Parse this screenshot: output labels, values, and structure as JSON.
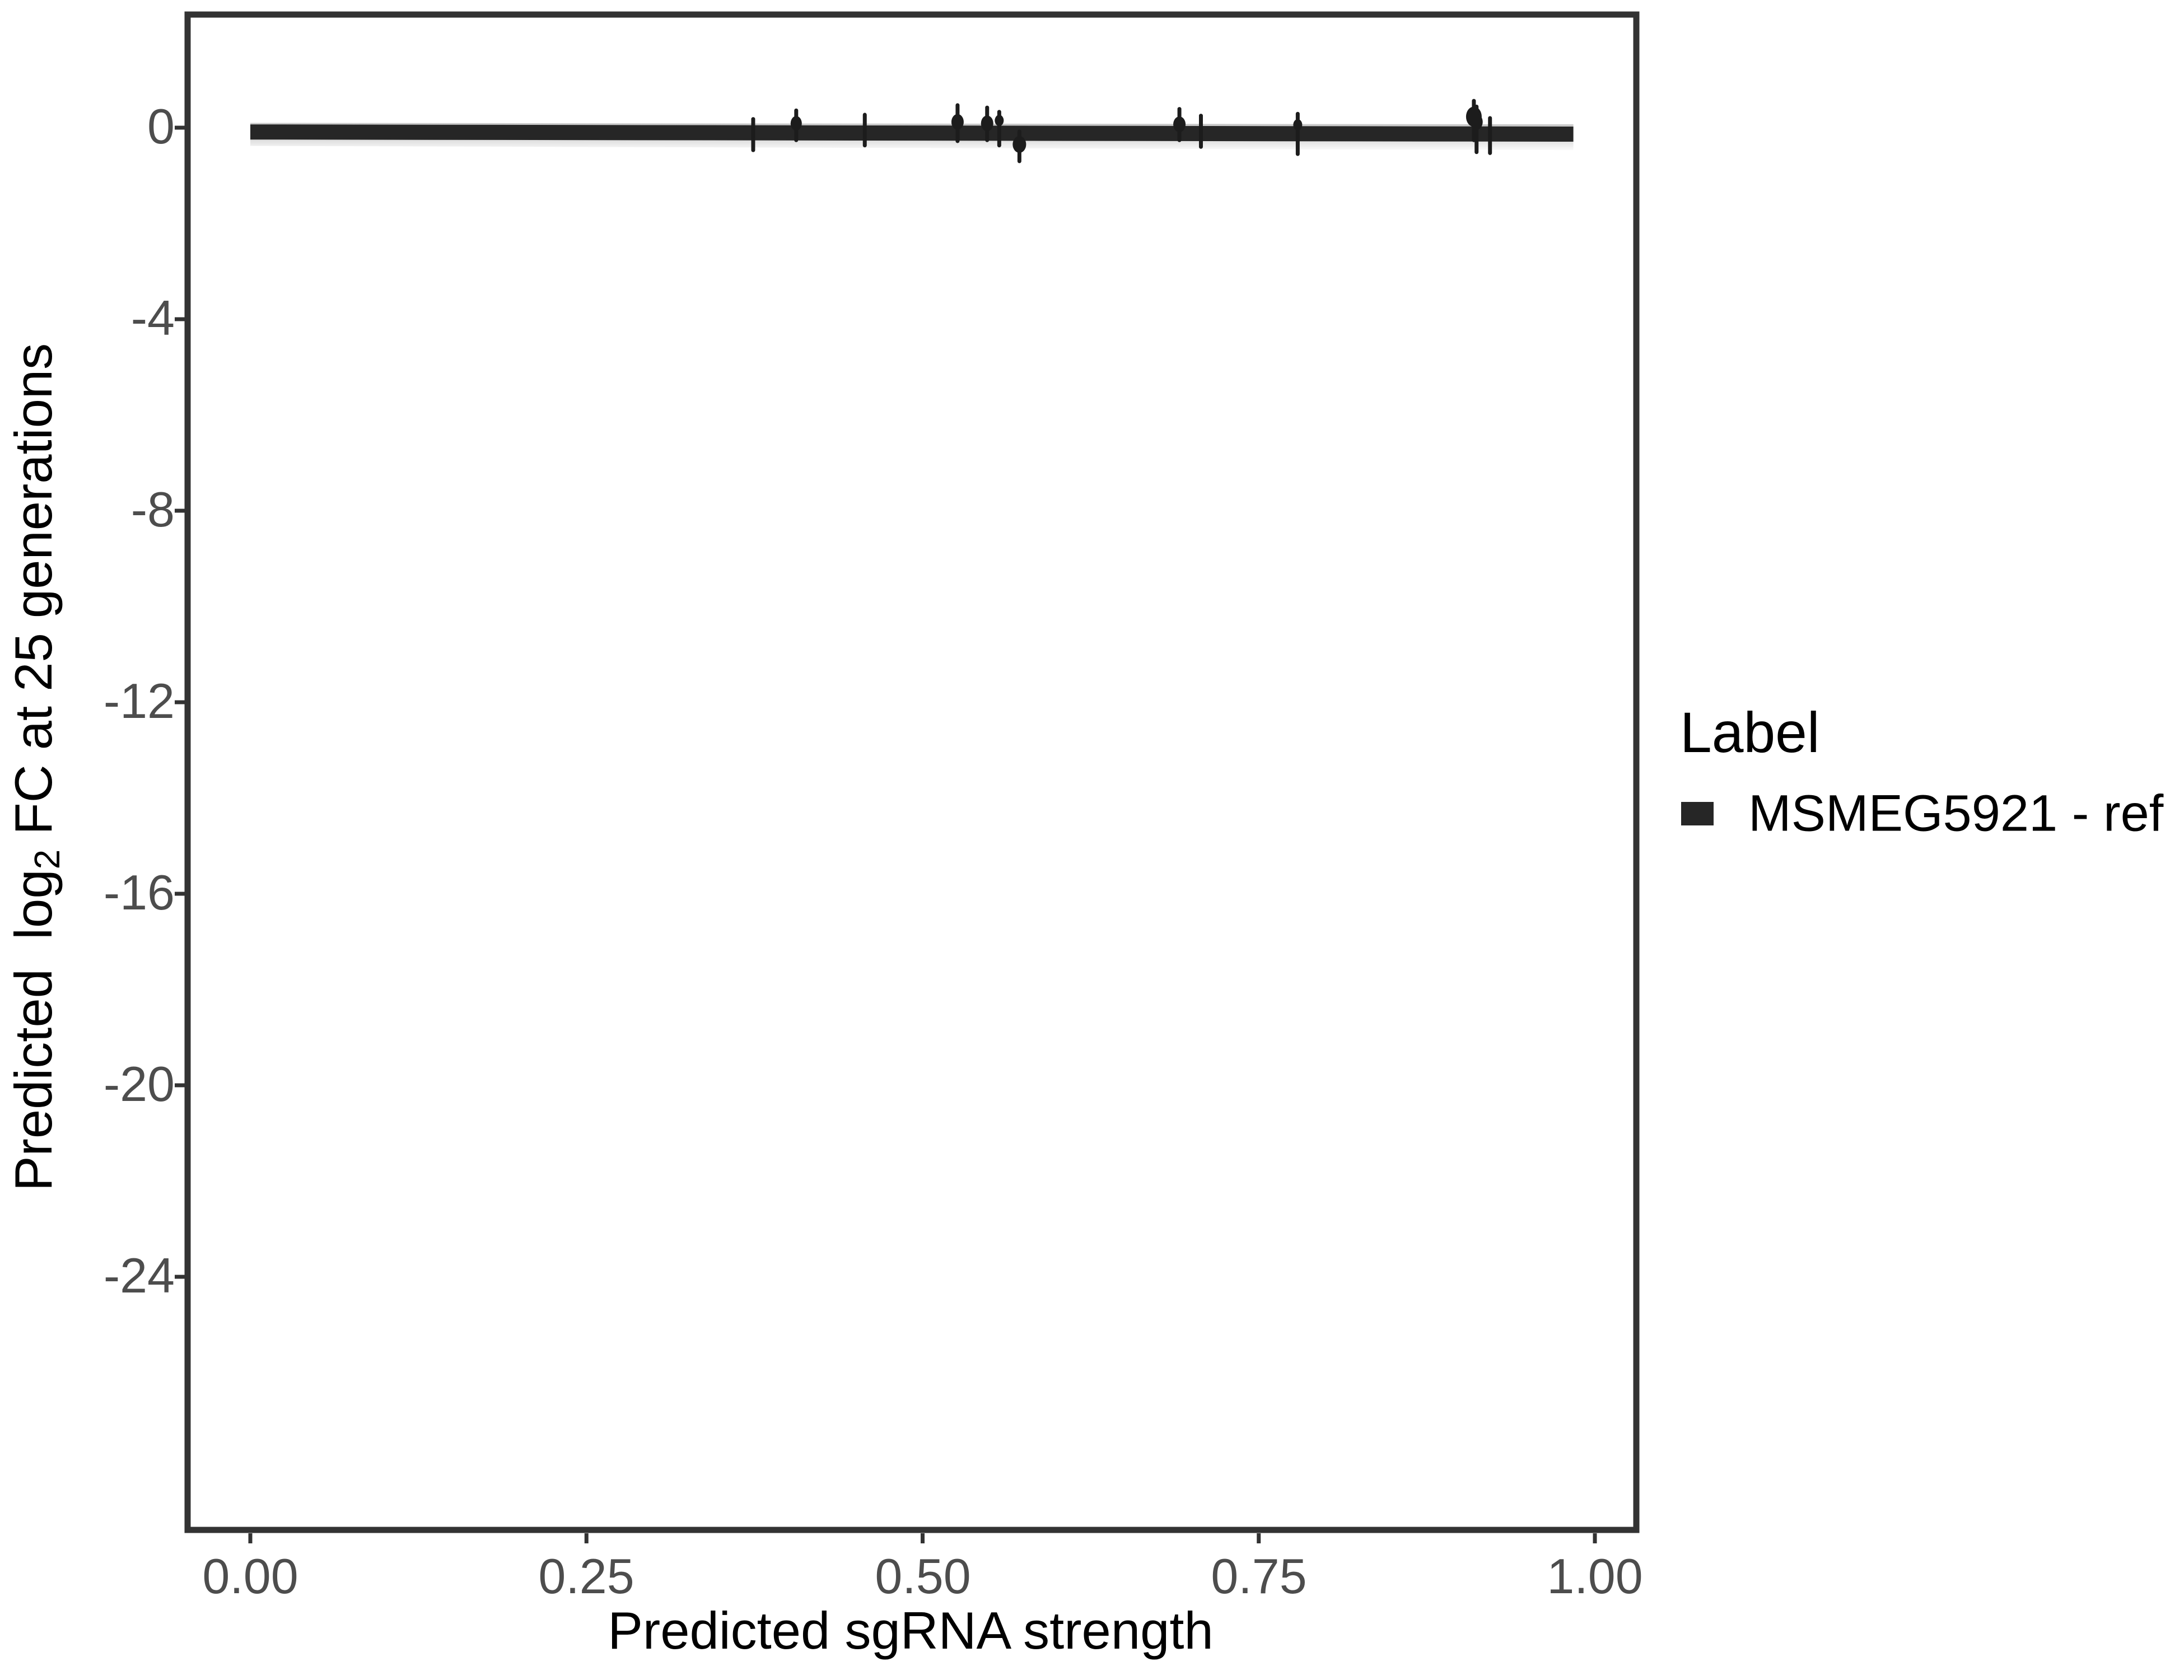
{
  "chart_data": {
    "type": "scatter",
    "title": "",
    "xlabel": "Predicted sgRNA strength",
    "ylabel_pre": "Predicted  log",
    "ylabel_sub": "2",
    "ylabel_post": " FC at 25 generations",
    "xlim": [
      -0.049,
      1.031
    ],
    "ylim": [
      -29.3,
      2.4
    ],
    "grid": "off",
    "legend_position": "right",
    "x_ticks": [
      0,
      0.25,
      0.5,
      0.75,
      1
    ],
    "x_tick_labels": [
      "0.00",
      "0.25",
      "0.50",
      "0.75",
      "1.00"
    ],
    "y_ticks": [
      0,
      -4,
      -8,
      -12,
      -16,
      -20,
      -24
    ],
    "y_tick_labels": [
      "0",
      "-4",
      "-8",
      "-12",
      "-16",
      "-20",
      "-24"
    ],
    "series": [
      {
        "name": "MSMEG5921 - ref",
        "color": "#262626",
        "smooth_line": {
          "x": [
            0.0,
            0.984
          ],
          "y": [
            -0.09,
            -0.135
          ]
        },
        "ribbon": {
          "x": [
            0.0,
            0.984
          ],
          "ymax": [
            0.1,
            0.07
          ],
          "ymin": [
            -0.38,
            -0.47
          ]
        },
        "points": [
          {
            "x": 0.374,
            "y": -0.1,
            "ymin": -0.47,
            "ymax": 0.18,
            "dot": false,
            "r": 0
          },
          {
            "x": 0.406,
            "y": 0.09,
            "ymin": -0.26,
            "ymax": 0.36,
            "dot": true,
            "r": 10
          },
          {
            "x": 0.457,
            "y": -0.05,
            "ymin": -0.37,
            "ymax": 0.27,
            "dot": false,
            "r": 0
          },
          {
            "x": 0.526,
            "y": 0.12,
            "ymin": -0.28,
            "ymax": 0.47,
            "dot": true,
            "r": 11
          },
          {
            "x": 0.548,
            "y": 0.09,
            "ymin": -0.26,
            "ymax": 0.42,
            "dot": true,
            "r": 11
          },
          {
            "x": 0.557,
            "y": 0.15,
            "ymin": -0.37,
            "ymax": 0.33,
            "dot": true,
            "r": 8
          },
          {
            "x": 0.572,
            "y": -0.35,
            "ymin": -0.7,
            "ymax": -0.08,
            "dot": true,
            "r": 12
          },
          {
            "x": 0.691,
            "y": 0.07,
            "ymin": -0.26,
            "ymax": 0.39,
            "dot": true,
            "r": 11
          },
          {
            "x": 0.707,
            "y": -0.08,
            "ymin": -0.4,
            "ymax": 0.25,
            "dot": false,
            "r": 0
          },
          {
            "x": 0.779,
            "y": 0.06,
            "ymin": -0.55,
            "ymax": 0.29,
            "dot": true,
            "r": 8
          },
          {
            "x": 0.91,
            "y": 0.23,
            "ymin": -0.26,
            "ymax": 0.56,
            "dot": true,
            "r": 14
          },
          {
            "x": 0.912,
            "y": 0.12,
            "ymin": -0.51,
            "ymax": 0.44,
            "dot": true,
            "r": 11
          },
          {
            "x": 0.922,
            "y": 0.15,
            "ymin": -0.53,
            "ymax": 0.2,
            "dot": false,
            "r": 0
          }
        ]
      }
    ],
    "colors": {
      "line": "#262626",
      "ribbon": "#d6d6d6",
      "point": "#1c1c1c",
      "panel_border": "#333333",
      "tick": "#333333",
      "tick_label": "#4d4d4d",
      "axis_title": "#000000"
    }
  },
  "legend": {
    "title": "Label",
    "items": [
      {
        "label": "MSMEG5921 - ref",
        "swatch_color": "#262626"
      }
    ]
  }
}
